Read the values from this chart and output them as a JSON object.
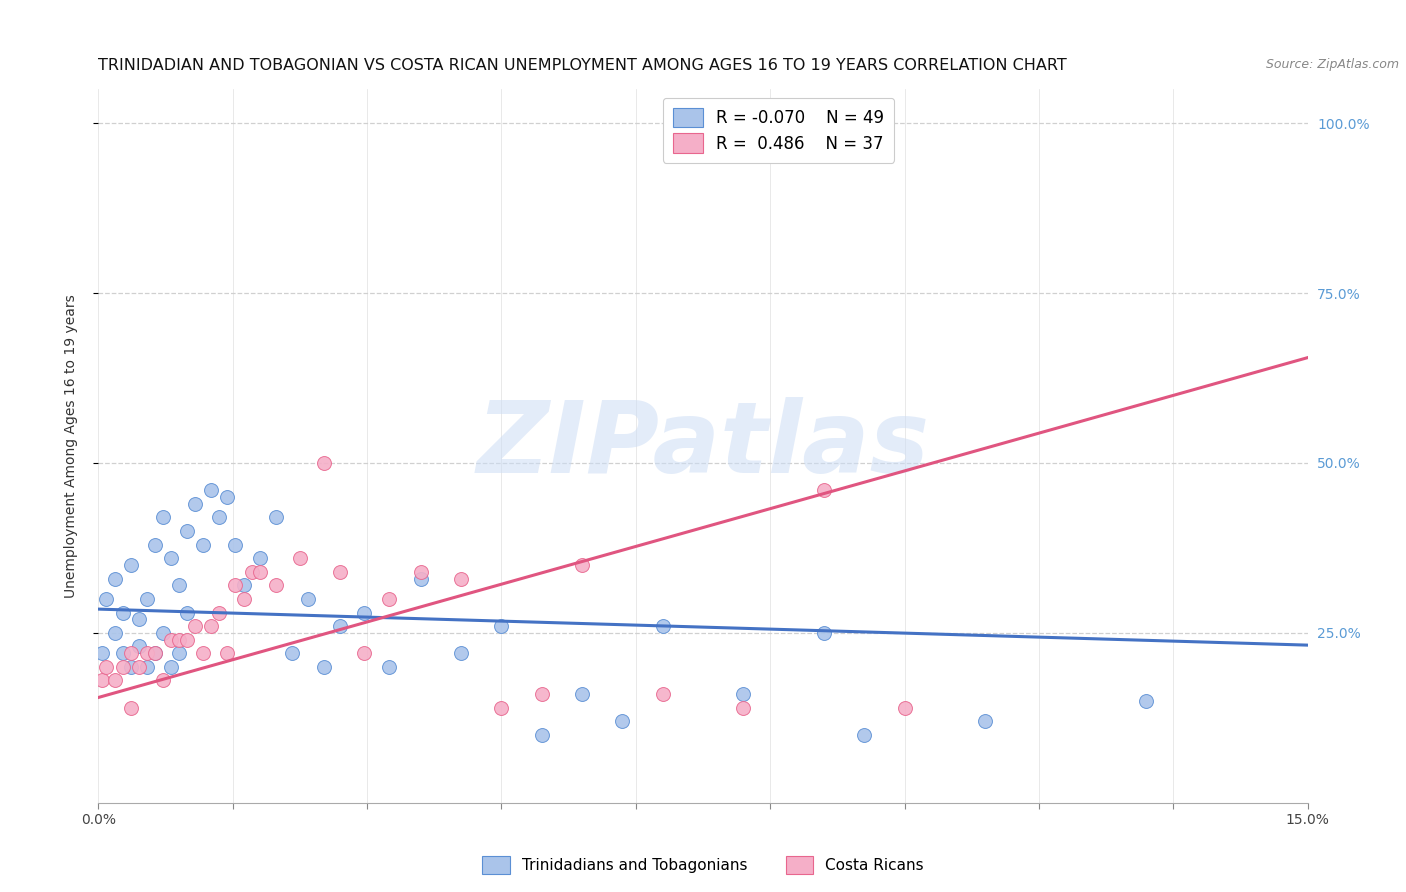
{
  "title": "TRINIDADIAN AND TOBAGONIAN VS COSTA RICAN UNEMPLOYMENT AMONG AGES 16 TO 19 YEARS CORRELATION CHART",
  "source": "Source: ZipAtlas.com",
  "ylabel": "Unemployment Among Ages 16 to 19 years",
  "xlim": [
    0.0,
    0.15
  ],
  "ylim": [
    0.0,
    1.05
  ],
  "xticks": [
    0.0,
    0.0167,
    0.0333,
    0.05,
    0.0667,
    0.0833,
    0.1,
    0.1167,
    0.1333,
    0.15
  ],
  "xticklabels_visible": {
    "0.0": "0.0%",
    "0.15": "15.0%"
  },
  "yticks": [
    0.25,
    0.5,
    0.75,
    1.0
  ],
  "yticklabels": [
    "25.0%",
    "50.0%",
    "75.0%",
    "100.0%"
  ],
  "blue_color": "#aac4ea",
  "pink_color": "#f5afc8",
  "blue_edge_color": "#5b8fd4",
  "pink_edge_color": "#e8668e",
  "blue_line_color": "#4472c4",
  "pink_line_color": "#e05580",
  "legend_r1": "R = -0.070",
  "legend_n1": "N = 49",
  "legend_r2": "R =  0.486",
  "legend_n2": "N = 37",
  "legend_label1": "Trinidadians and Tobagonians",
  "legend_label2": "Costa Ricans",
  "watermark": "ZIPatlas",
  "blue_scatter_x": [
    0.0005,
    0.001,
    0.002,
    0.002,
    0.003,
    0.003,
    0.004,
    0.004,
    0.005,
    0.005,
    0.006,
    0.006,
    0.007,
    0.007,
    0.008,
    0.008,
    0.009,
    0.009,
    0.01,
    0.01,
    0.011,
    0.011,
    0.012,
    0.013,
    0.014,
    0.015,
    0.016,
    0.017,
    0.018,
    0.02,
    0.022,
    0.024,
    0.026,
    0.028,
    0.03,
    0.033,
    0.036,
    0.04,
    0.045,
    0.05,
    0.055,
    0.06,
    0.065,
    0.07,
    0.08,
    0.09,
    0.095,
    0.11,
    0.13
  ],
  "blue_scatter_y": [
    0.22,
    0.3,
    0.25,
    0.33,
    0.22,
    0.28,
    0.2,
    0.35,
    0.23,
    0.27,
    0.2,
    0.3,
    0.22,
    0.38,
    0.25,
    0.42,
    0.2,
    0.36,
    0.22,
    0.32,
    0.4,
    0.28,
    0.44,
    0.38,
    0.46,
    0.42,
    0.45,
    0.38,
    0.32,
    0.36,
    0.42,
    0.22,
    0.3,
    0.2,
    0.26,
    0.28,
    0.2,
    0.33,
    0.22,
    0.26,
    0.1,
    0.16,
    0.12,
    0.26,
    0.16,
    0.25,
    0.1,
    0.12,
    0.15
  ],
  "pink_scatter_x": [
    0.0005,
    0.001,
    0.002,
    0.003,
    0.004,
    0.004,
    0.005,
    0.006,
    0.007,
    0.008,
    0.009,
    0.01,
    0.011,
    0.012,
    0.013,
    0.014,
    0.015,
    0.016,
    0.017,
    0.018,
    0.019,
    0.02,
    0.022,
    0.025,
    0.028,
    0.03,
    0.033,
    0.036,
    0.04,
    0.045,
    0.05,
    0.055,
    0.06,
    0.07,
    0.08,
    0.09,
    0.1
  ],
  "pink_scatter_y": [
    0.18,
    0.2,
    0.18,
    0.2,
    0.14,
    0.22,
    0.2,
    0.22,
    0.22,
    0.18,
    0.24,
    0.24,
    0.24,
    0.26,
    0.22,
    0.26,
    0.28,
    0.22,
    0.32,
    0.3,
    0.34,
    0.34,
    0.32,
    0.36,
    0.5,
    0.34,
    0.22,
    0.3,
    0.34,
    0.33,
    0.14,
    0.16,
    0.35,
    0.16,
    0.14,
    0.46,
    0.14
  ],
  "blue_trendline_x": [
    0.0,
    0.15
  ],
  "blue_trendline_y": [
    0.285,
    0.232
  ],
  "pink_trendline_x": [
    0.0,
    0.15
  ],
  "pink_trendline_y": [
    0.155,
    0.655
  ],
  "grid_color": "#d0d0d0",
  "bg_color": "#ffffff",
  "right_tick_color": "#5b9bd5",
  "title_fontsize": 11.5,
  "tick_fontsize": 10,
  "ylabel_fontsize": 10,
  "scatter_size": 100
}
